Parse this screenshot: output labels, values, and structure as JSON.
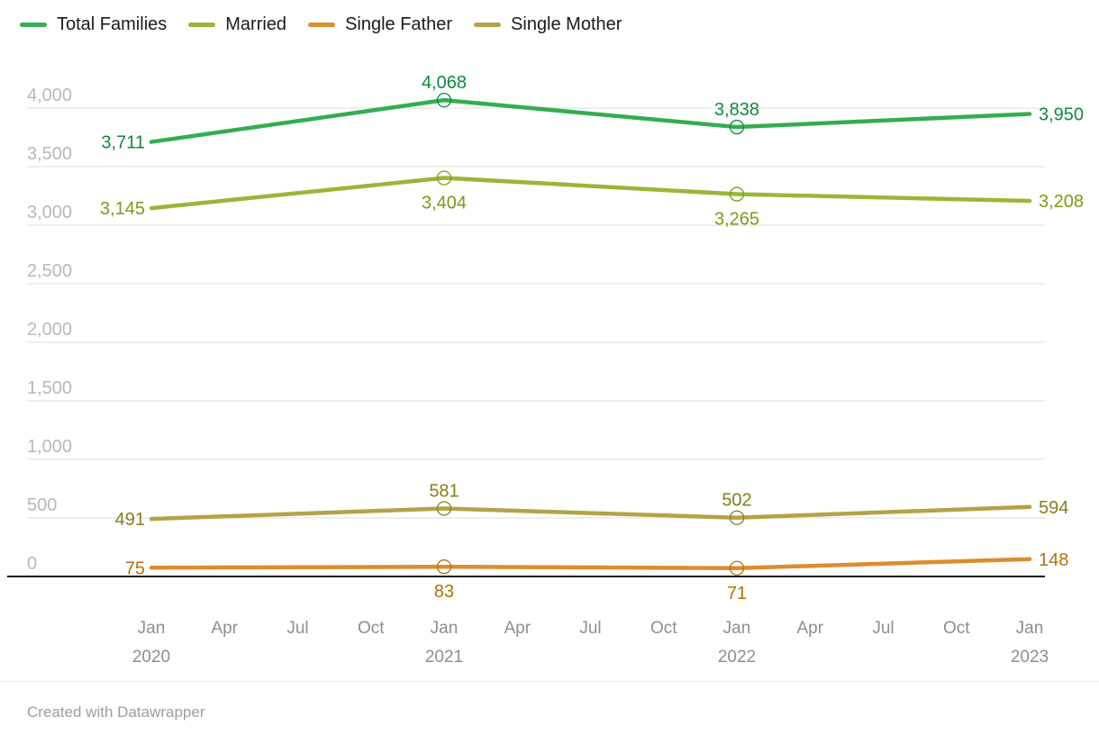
{
  "legend": {
    "items": [
      {
        "label": "Total Families",
        "color": "#34ad50"
      },
      {
        "label": "Married",
        "color": "#99b637"
      },
      {
        "label": "Single Father",
        "color": "#de8c2d"
      },
      {
        "label": "Single Mother",
        "color": "#b3a346"
      }
    ]
  },
  "chart_data": {
    "type": "line",
    "title": "",
    "legend_position": "top",
    "grid": true,
    "x_tick_labels": [
      {
        "month": "Jan",
        "year": "2020"
      },
      {
        "month": "Apr",
        "year": ""
      },
      {
        "month": "Jul",
        "year": ""
      },
      {
        "month": "Oct",
        "year": ""
      },
      {
        "month": "Jan",
        "year": "2021"
      },
      {
        "month": "Apr",
        "year": ""
      },
      {
        "month": "Jul",
        "year": ""
      },
      {
        "month": "Oct",
        "year": ""
      },
      {
        "month": "Jan",
        "year": "2022"
      },
      {
        "month": "Apr",
        "year": ""
      },
      {
        "month": "Jul",
        "year": ""
      },
      {
        "month": "Oct",
        "year": ""
      },
      {
        "month": "Jan",
        "year": "2023"
      }
    ],
    "data_point_tick_indices": [
      0,
      4,
      8,
      12
    ],
    "series": [
      {
        "name": "Total Families",
        "color": "#34ad50",
        "label_color": "#0e8a3c",
        "values": [
          3711,
          4068,
          3838,
          3950
        ],
        "mid_label_position": "above"
      },
      {
        "name": "Married",
        "color": "#99b637",
        "label_color": "#7d9a12",
        "values": [
          3145,
          3404,
          3265,
          3208
        ],
        "mid_label_position": "below"
      },
      {
        "name": "Single Father",
        "color": "#de8c2d",
        "label_color": "#b4700e",
        "values": [
          75,
          83,
          71,
          148
        ],
        "mid_label_position": "below"
      },
      {
        "name": "Single Mother",
        "color": "#b3a346",
        "label_color": "#8c7c1c",
        "values": [
          491,
          581,
          502,
          594
        ],
        "mid_label_position": "above"
      }
    ],
    "y_ticks": [
      0,
      500,
      1000,
      1500,
      2000,
      2500,
      3000,
      3500,
      4000
    ],
    "ylim": [
      0,
      4000
    ]
  },
  "footer": {
    "credit": "Created with Datawrapper"
  }
}
